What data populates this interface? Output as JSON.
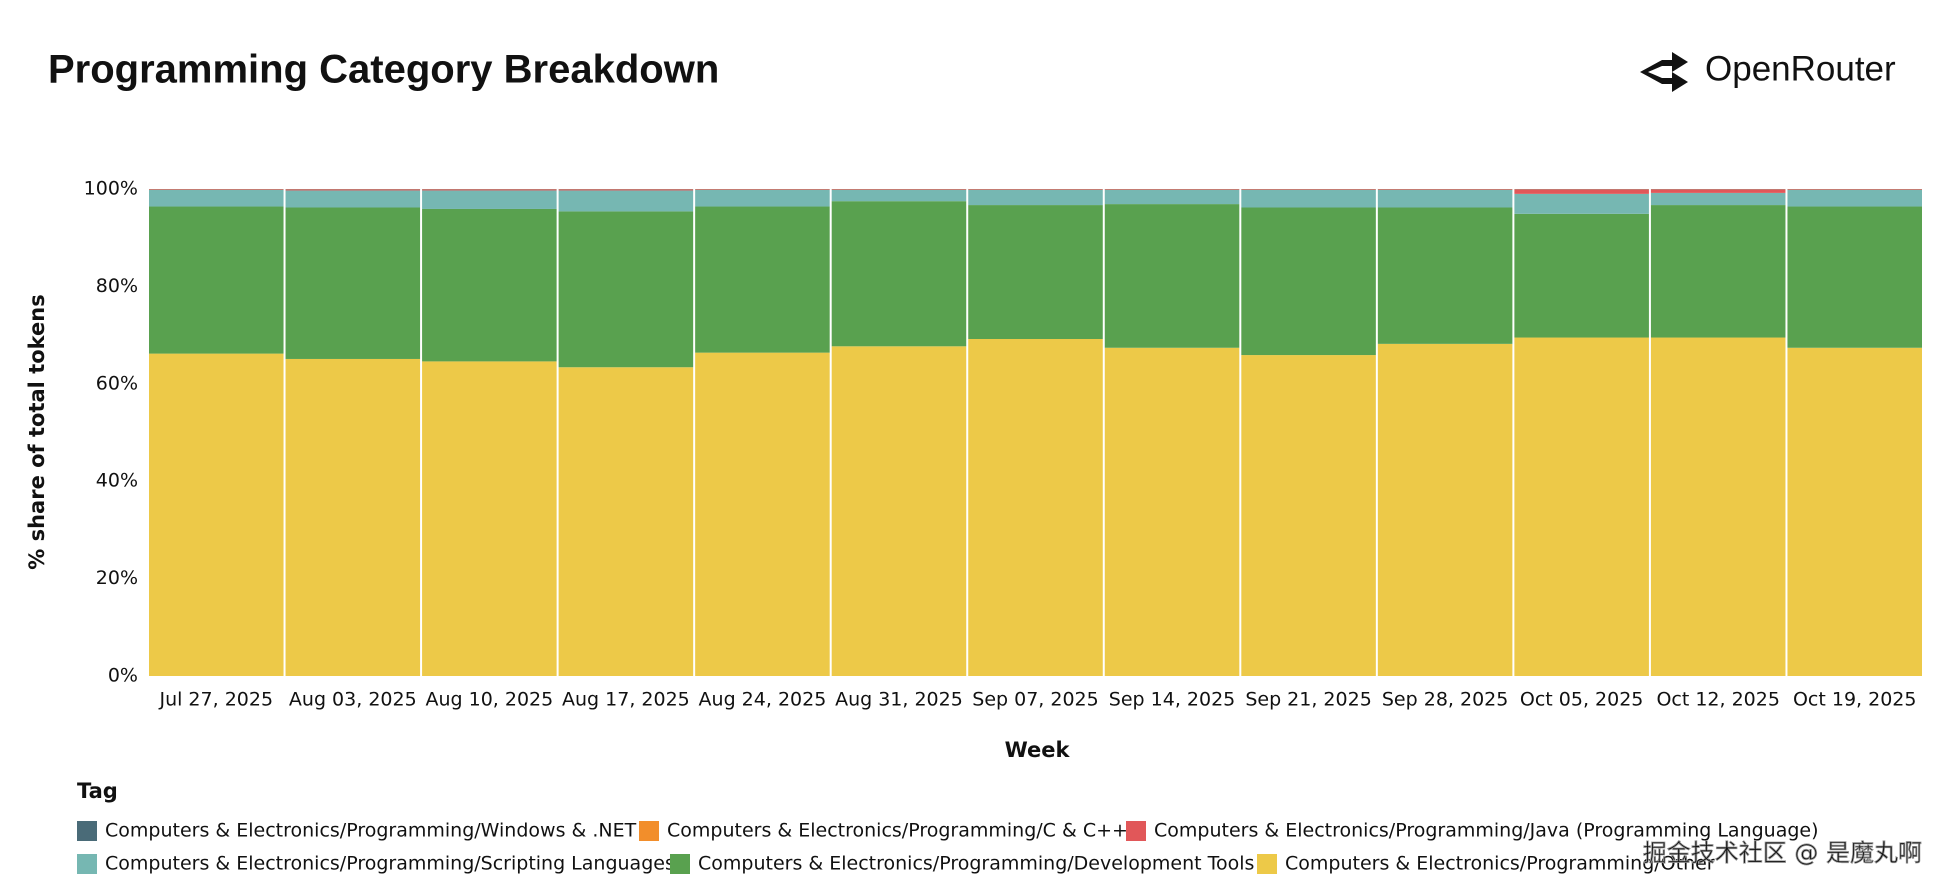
{
  "chart_data": {
    "type": "stacked_bar_100",
    "title": "Programming Category Breakdown",
    "brand": "OpenRouter",
    "watermark": "掘金技术社区 @ 是魔丸啊",
    "x_label": "Week",
    "y_label": "% share of total tokens",
    "legend_title": "Tag",
    "categories": [
      "Jul 27, 2025",
      "Aug 03, 2025",
      "Aug 10, 2025",
      "Aug 17, 2025",
      "Aug 24, 2025",
      "Aug 31, 2025",
      "Sep 07, 2025",
      "Sep 14, 2025",
      "Sep 21, 2025",
      "Sep 28, 2025",
      "Oct 05, 2025",
      "Oct 12, 2025",
      "Oct 19, 2025"
    ],
    "series": [
      {
        "name": "Computers & Electronics/Programming/Windows & .NET",
        "color": "#4a6b78",
        "values": [
          0.05,
          0.05,
          0.05,
          0.05,
          0.05,
          0.05,
          0.05,
          0.05,
          0.05,
          0.05,
          0.05,
          0.05,
          0.05
        ]
      },
      {
        "name": "Computers & Electronics/Programming/C & C++",
        "color": "#f28e2b",
        "values": [
          0.05,
          0.05,
          0.05,
          0.05,
          0.05,
          0.05,
          0.05,
          0.05,
          0.05,
          0.05,
          0.05,
          0.05,
          0.05
        ]
      },
      {
        "name": "Computers & Electronics/Programming/Java (Programming Language)",
        "color": "#e15759",
        "values": [
          0.1,
          0.2,
          0.2,
          0.2,
          0.1,
          0.1,
          0.1,
          0.1,
          0.1,
          0.1,
          0.9,
          0.7,
          0.1
        ]
      },
      {
        "name": "Computers & Electronics/Programming/Scripting Languages",
        "color": "#76b7b2",
        "values": [
          3.4,
          3.5,
          3.8,
          4.3,
          3.4,
          2.3,
          3.1,
          2.9,
          3.6,
          3.6,
          4.1,
          2.5,
          3.4
        ]
      },
      {
        "name": "Computers & Electronics/Programming/Development Tools",
        "color": "#59a14f",
        "values": [
          30.2,
          31.1,
          31.3,
          32.0,
          30.0,
          29.8,
          27.5,
          29.5,
          30.3,
          28.0,
          25.4,
          27.2,
          29.0
        ]
      },
      {
        "name": "Computers & Electronics/Programming/Other",
        "color": "#edc948",
        "values": [
          66.2,
          65.1,
          64.6,
          63.4,
          66.4,
          67.7,
          69.2,
          67.4,
          65.9,
          68.2,
          69.5,
          69.5,
          67.4
        ]
      }
    ],
    "ylim": [
      0,
      100
    ],
    "yticks": [
      {
        "value": 0,
        "label": "0%"
      },
      {
        "value": 20,
        "label": "20%"
      },
      {
        "value": 40,
        "label": "40%"
      },
      {
        "value": 60,
        "label": "60%"
      },
      {
        "value": 80,
        "label": "80%"
      },
      {
        "value": 100,
        "label": "100%"
      }
    ]
  }
}
